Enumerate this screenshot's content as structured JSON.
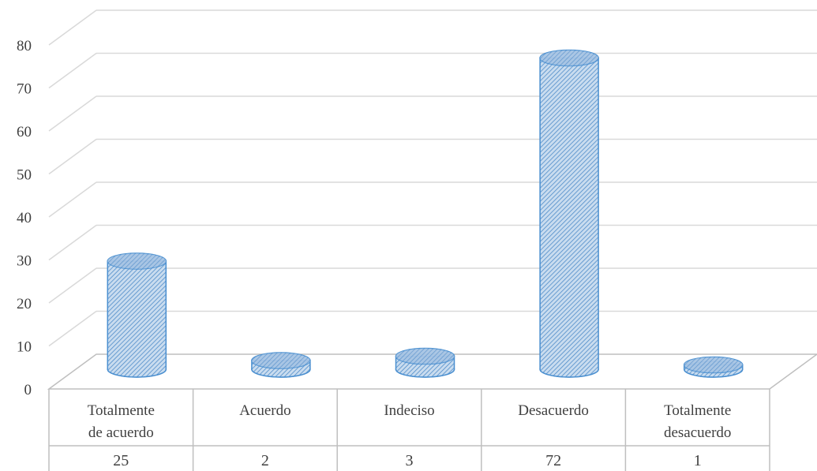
{
  "colors": {
    "bar_fill": "#c9dcef",
    "bar_stroke": "#4a8fd0",
    "hatch": "#4f8cc9",
    "gridline": "#d9d9d9",
    "table_line": "#bfbfbf",
    "text": "#404040"
  },
  "chart_data": {
    "type": "bar",
    "style": "3d-cylinder",
    "categories": [
      "Totalmente de acuerdo",
      "Acuerdo",
      "Indeciso",
      "Desacuerdo",
      "Totalmente desacuerdo"
    ],
    "category_lines": [
      [
        "Totalmente",
        "de acuerdo"
      ],
      [
        "Acuerdo"
      ],
      [
        "Indeciso"
      ],
      [
        "Desacuerdo"
      ],
      [
        "Totalmente",
        "desacuerdo"
      ]
    ],
    "values": [
      25,
      2,
      3,
      72,
      1
    ],
    "value_labels": [
      "25",
      "2",
      "3",
      "72",
      "1"
    ],
    "y_ticks": [
      "0",
      "10",
      "20",
      "30",
      "40",
      "50",
      "60",
      "70",
      "80"
    ],
    "ylim": [
      0,
      80
    ],
    "grid": true,
    "data_table": true,
    "title": "",
    "xlabel": "",
    "ylabel": ""
  }
}
